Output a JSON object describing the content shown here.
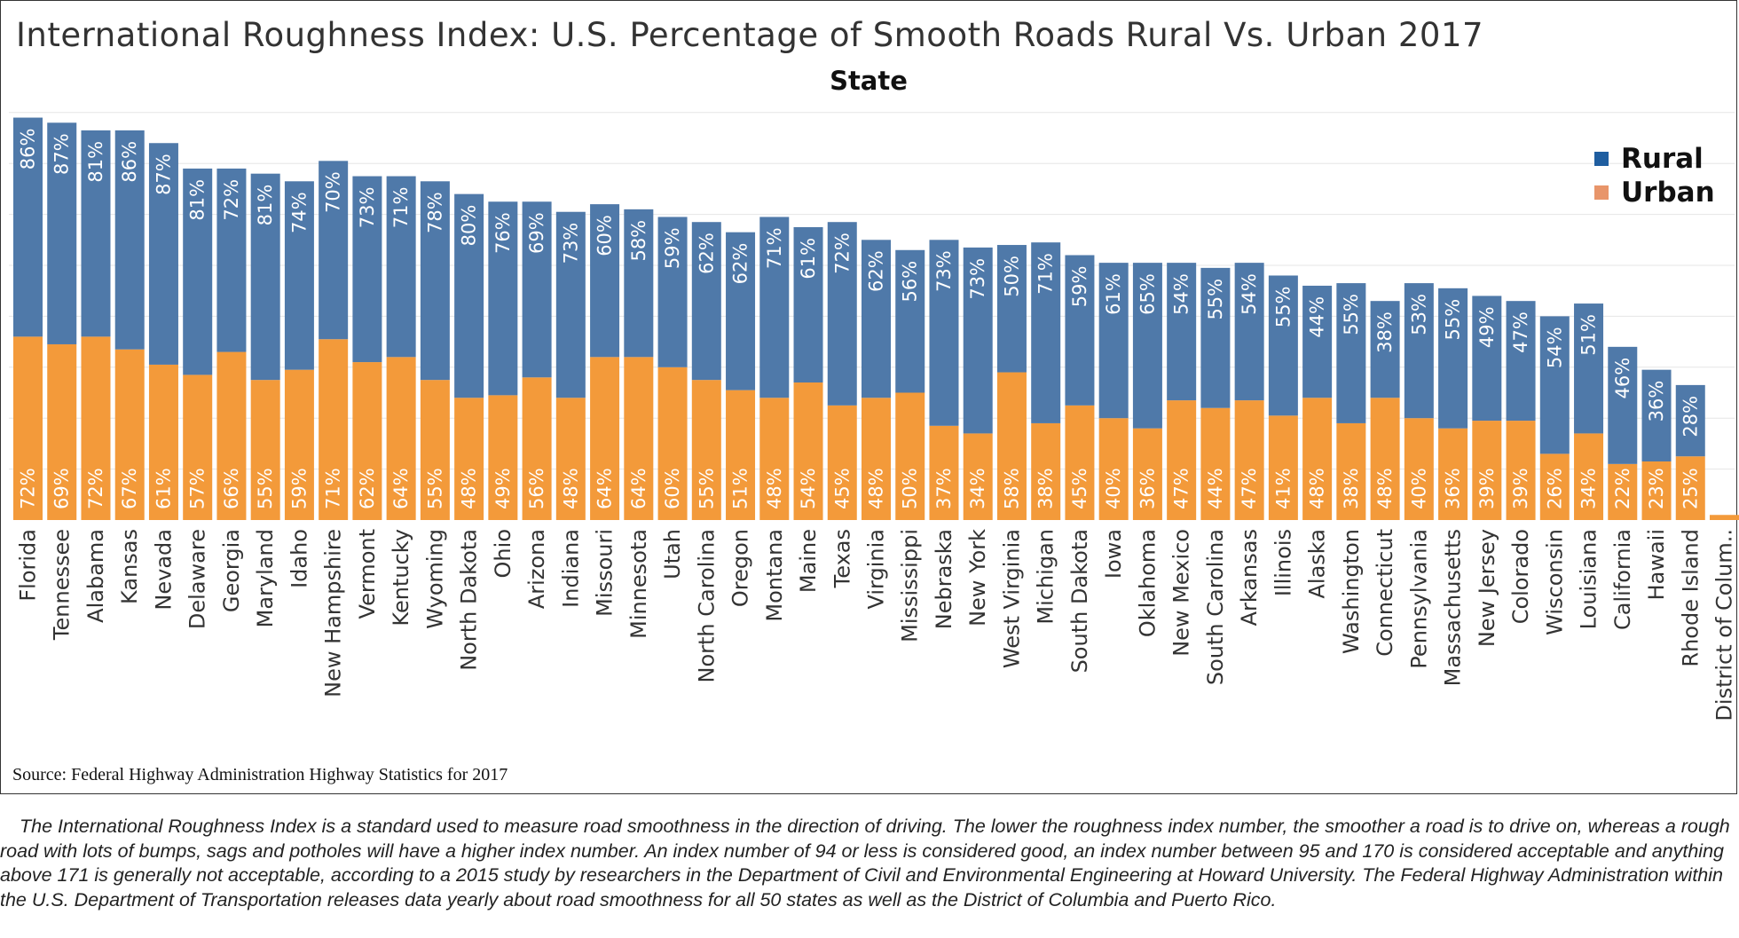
{
  "title": "International Roughness Index: U.S. Percentage of Smooth Roads Rural Vs. Urban 2017",
  "source": "Source: Federal Highway Administration Highway Statistics for 2017",
  "caption": "The International Roughness Index is a standard used to measure road smoothness in the direction of driving. The lower the roughness index number, the smoother a road is to drive on, whereas a rough road with lots of bumps, sags and potholes will have a higher index number. An index number of 94 or less is considered good, an index number between 95 and 170 is considered acceptable and anything above 171 is generally not acceptable, according to a 2015 study by researchers in the Department of Civil and Environmental Engineering at Howard University. The Federal Highway Administration within the U.S. Department of Transportation releases data yearly about road smoothness for all 50 states as well as the District of Columbia and Puerto Rico.",
  "colors": {
    "rural": "#4f79a9",
    "urban": "#f39a3a",
    "legend_rural": "#1f5ea0",
    "legend_urban": "#e8956a",
    "grid": "#e6e6e6"
  },
  "chart_data": {
    "type": "bar",
    "stacked": true,
    "title": "International Roughness Index: U.S. Percentage of Smooth Roads Rural Vs. Urban 2017",
    "subtitle": "State",
    "xlabel": "State",
    "ylabel": "",
    "ylim": [
      0,
      160
    ],
    "grid": true,
    "legend_position": "top-right",
    "categories": [
      "Florida",
      "Tennessee",
      "Alabama",
      "Kansas",
      "Nevada",
      "Delaware",
      "Georgia",
      "Maryland",
      "Idaho",
      "New Hampshire",
      "Vermont",
      "Kentucky",
      "Wyoming",
      "North Dakota",
      "Ohio",
      "Arizona",
      "Indiana",
      "Missouri",
      "Minnesota",
      "Utah",
      "North Carolina",
      "Oregon",
      "Montana",
      "Maine",
      "Texas",
      "Virginia",
      "Mississippi",
      "Nebraska",
      "New York",
      "West Virginia",
      "Michigan",
      "South Dakota",
      "Iowa",
      "Oklahoma",
      "New Mexico",
      "South Carolina",
      "Arkansas",
      "Illinois",
      "Alaska",
      "Washington",
      "Connecticut",
      "Pennsylvania",
      "Massachusetts",
      "New Jersey",
      "Colorado",
      "Wisconsin",
      "Louisiana",
      "California",
      "Hawaii",
      "Rhode Island",
      "District of Colum.."
    ],
    "series": [
      {
        "name": "Urban",
        "values": [
          72,
          69,
          72,
          67,
          61,
          57,
          66,
          55,
          59,
          71,
          62,
          64,
          55,
          48,
          49,
          56,
          48,
          64,
          64,
          60,
          55,
          51,
          48,
          54,
          45,
          48,
          50,
          37,
          34,
          58,
          38,
          45,
          40,
          36,
          47,
          44,
          47,
          41,
          48,
          38,
          48,
          40,
          36,
          39,
          39,
          26,
          34,
          22,
          23,
          25,
          2
        ],
        "labels": [
          "72%",
          "69%",
          "72%",
          "67%",
          "61%",
          "57%",
          "66%",
          "55%",
          "59%",
          "71%",
          "62%",
          "64%",
          "55%",
          "48%",
          "49%",
          "56%",
          "48%",
          "64%",
          "64%",
          "60%",
          "55%",
          "51%",
          "48%",
          "54%",
          "45%",
          "48%",
          "50%",
          "37%",
          "34%",
          "58%",
          "38%",
          "45%",
          "40%",
          "36%",
          "47%",
          "44%",
          "47%",
          "41%",
          "48%",
          "38%",
          "48%",
          "40%",
          "36%",
          "39%",
          "39%",
          "26%",
          "34%",
          "22%",
          "23%",
          "25%",
          ""
        ]
      },
      {
        "name": "Rural",
        "values": [
          86,
          87,
          81,
          86,
          87,
          81,
          72,
          81,
          74,
          70,
          73,
          71,
          78,
          80,
          76,
          69,
          73,
          60,
          58,
          59,
          62,
          62,
          71,
          61,
          72,
          62,
          56,
          73,
          73,
          50,
          71,
          59,
          61,
          65,
          54,
          55,
          54,
          55,
          44,
          55,
          38,
          53,
          55,
          49,
          47,
          54,
          51,
          46,
          36,
          28,
          0
        ],
        "labels": [
          "86%",
          "87%",
          "81%",
          "86%",
          "87%",
          "81%",
          "72%",
          "81%",
          "74%",
          "70%",
          "73%",
          "71%",
          "78%",
          "80%",
          "76%",
          "69%",
          "73%",
          "60%",
          "58%",
          "59%",
          "62%",
          "62%",
          "71%",
          "61%",
          "72%",
          "62%",
          "56%",
          "73%",
          "73%",
          "50%",
          "71%",
          "59%",
          "61%",
          "65%",
          "54%",
          "55%",
          "54%",
          "55%",
          "44%",
          "55%",
          "38%",
          "53%",
          "55%",
          "49%",
          "47%",
          "54%",
          "51%",
          "46%",
          "36%",
          "28%",
          ""
        ]
      }
    ]
  }
}
